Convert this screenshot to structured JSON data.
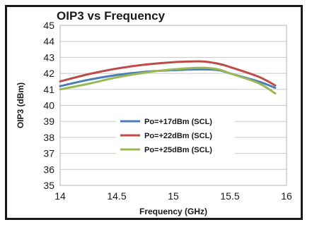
{
  "chart_data": {
    "type": "line",
    "title": "OIP3 vs Frequency",
    "xlabel": "Frequency (GHz)",
    "ylabel": "OIP3 (dBm)",
    "xlim": [
      14,
      16
    ],
    "ylim": [
      35,
      45
    ],
    "x_ticks": [
      14,
      14.5,
      15,
      15.5,
      16
    ],
    "x_tick_labels": [
      "14",
      "14.5",
      "15",
      "15.5",
      "16"
    ],
    "y_ticks": [
      35,
      36,
      37,
      38,
      39,
      40,
      41,
      42,
      43,
      44,
      45
    ],
    "y_tick_labels": [
      "35",
      "36",
      "37",
      "38",
      "39",
      "40",
      "41",
      "42",
      "43",
      "44",
      "45"
    ],
    "grid": true,
    "legend_position": "center-bottom",
    "series": [
      {
        "name": "Po=+17dBm (SCL)",
        "color": "#4a7ebb",
        "x": [
          14,
          14.25,
          14.5,
          14.75,
          15,
          15.25,
          15.4,
          15.5,
          15.75,
          15.9
        ],
        "y": [
          41.2,
          41.6,
          41.9,
          42.1,
          42.2,
          42.25,
          42.2,
          42.0,
          41.5,
          41.1
        ]
      },
      {
        "name": "Po=+22dBm (SCL)",
        "color": "#be4b48",
        "x": [
          14,
          14.25,
          14.5,
          14.75,
          15,
          15.25,
          15.4,
          15.5,
          15.75,
          15.9
        ],
        "y": [
          41.5,
          41.95,
          42.3,
          42.55,
          42.7,
          42.75,
          42.6,
          42.4,
          41.8,
          41.25
        ]
      },
      {
        "name": "Po=+25dBm (SCL)",
        "color": "#98b954",
        "x": [
          14,
          14.25,
          14.5,
          14.75,
          15,
          15.25,
          15.4,
          15.5,
          15.75,
          15.9
        ],
        "y": [
          41.0,
          41.35,
          41.75,
          42.05,
          42.25,
          42.35,
          42.25,
          42.0,
          41.4,
          40.75
        ]
      }
    ]
  }
}
